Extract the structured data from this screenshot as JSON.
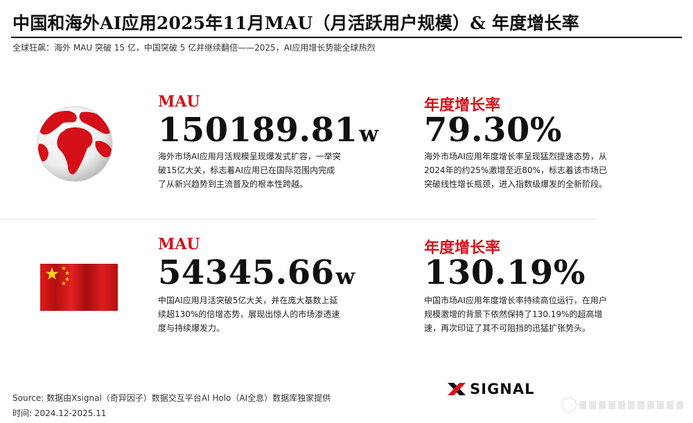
{
  "header": {
    "title": "中国和海外AI应用2025年11月MAU（月活跃用户规模）& 年度增长率",
    "subtitle": "全球狂飙：海外 MAU 突破 15 亿，中国突破 5 亿并继续翻倍——2025，AI应用增长势能全球热烈"
  },
  "overseas": {
    "icon": "globe-icon",
    "mau_label": "MAU",
    "mau_value": "150189.81",
    "mau_unit": "w",
    "mau_desc": "海外市场AI应用月活规模呈现爆发式扩容，一举突破15亿大关，标志着AI应用已在国际范围内完成了从新兴趋势到主流普及的根本性跨越。",
    "growth_label": "年度增长率",
    "growth_value": "79.30%",
    "growth_desc": "海外市场AI应用年度增长率呈现猛烈提速态势，从2024年的约25%激增至近80%，标志着该市场已突破线性增长瓶颈，进入指数级爆发的全新阶段。"
  },
  "china": {
    "icon": "china-flag-icon",
    "mau_label": "MAU",
    "mau_value": "54345.66",
    "mau_unit": "w",
    "mau_desc": "中国AI应用月活突破5亿大关，并在庞大基数上延续超130%的倍增态势，展现出惊人的市场渗透速度与持续爆发力。",
    "growth_label": "年度增长率",
    "growth_value": "130.19%",
    "growth_desc": "中国市场AI应用年度增长率持续高位运行，在用户规模激增的背景下依然保持了130.19%的超高增速，再次印证了其不可阻挡的迅猛扩张势头。"
  },
  "footer": {
    "source": "Source:  数据由Xsignal（奇异因子）数据交互平台AI Holo（AI全息）数据库独家提供",
    "time": "时间:  2024.12-2025.11",
    "logo_text": "SIGNAL"
  },
  "colors": {
    "accent": "#d6131b",
    "text": "#111111"
  }
}
